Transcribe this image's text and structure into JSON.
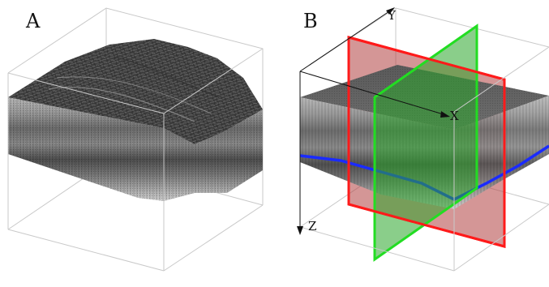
{
  "panels": [
    {
      "label": "A"
    },
    {
      "label": "B"
    }
  ],
  "axes": {
    "x_label": "X",
    "y_label": "Y",
    "z_label": "Z"
  },
  "colors": {
    "background": "#ffffff",
    "box_edge": "#c9c9c9",
    "plane_x": "#ff1a1a",
    "plane_y": "#22dd22",
    "boundary_line": "#1a2bff",
    "axis": "#111111"
  }
}
